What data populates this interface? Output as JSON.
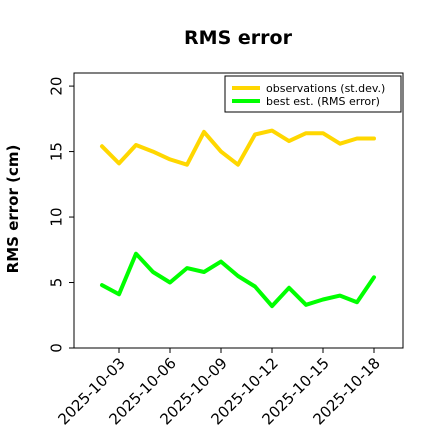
{
  "chart_data": {
    "type": "line",
    "title": "RMS error",
    "xlabel": "",
    "ylabel": "RMS error (cm)",
    "ylim": [
      0,
      21
    ],
    "yticks": [
      0,
      5,
      10,
      15,
      20
    ],
    "x": [
      "2025-10-02",
      "2025-10-03",
      "2025-10-04",
      "2025-10-05",
      "2025-10-06",
      "2025-10-07",
      "2025-10-08",
      "2025-10-09",
      "2025-10-10",
      "2025-10-11",
      "2025-10-12",
      "2025-10-13",
      "2025-10-14",
      "2025-10-15",
      "2025-10-16",
      "2025-10-17",
      "2025-10-18"
    ],
    "xticks": [
      "2025-10-03",
      "2025-10-06",
      "2025-10-09",
      "2025-10-12",
      "2025-10-15",
      "2025-10-18"
    ],
    "highlighted_xtick": "2025-10-09",
    "highlight_color": "#228b22",
    "legend_position": "upper right",
    "grid": false,
    "series": [
      {
        "name": "observations (st.dev.)",
        "color": "#ffd700",
        "values": [
          15.4,
          14.1,
          15.5,
          15.0,
          14.4,
          14.0,
          16.5,
          15.0,
          14.0,
          16.3,
          16.6,
          15.8,
          16.4,
          16.4,
          15.6,
          16.0,
          16.0
        ]
      },
      {
        "name": "best est. (RMS error)",
        "color": "#00ff00",
        "values": [
          4.8,
          4.1,
          7.2,
          5.8,
          5.0,
          6.1,
          5.8,
          6.6,
          5.5,
          4.7,
          3.2,
          4.6,
          3.3,
          3.7,
          4.0,
          3.5,
          5.4
        ]
      }
    ]
  }
}
